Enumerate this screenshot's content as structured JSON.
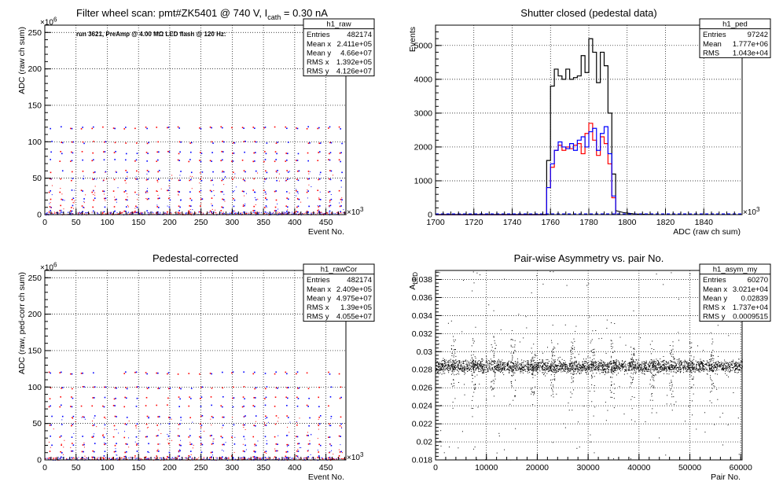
{
  "colors": {
    "black": "#000000",
    "red": "#ff0000",
    "blue": "#0000ff",
    "grid": "#000000",
    "stats_bg": "#ffffff"
  },
  "chart_data": [
    {
      "id": "raw",
      "type": "scatter",
      "title": "Filter wheel scan: pmt#ZK5401 @   740 V, I",
      "title_sub": "cath",
      "title_tail": " = 0.30 nA",
      "annotation": "run 3621, PreAmp @ 4.00 MΩ LED flash @  120 Hz:",
      "xlabel": "Event No.",
      "ylabel": "ADC (raw ch sum)",
      "x_multiplier": "×10",
      "x_multiplier_exp": "3",
      "y_multiplier": "×10",
      "y_multiplier_exp": "6",
      "xlim": [
        0,
        482
      ],
      "ylim": [
        0,
        260
      ],
      "xticks": [
        0,
        50,
        100,
        150,
        200,
        250,
        300,
        350,
        400,
        450
      ],
      "yticks": [
        0,
        50,
        100,
        150,
        200,
        250
      ],
      "grid": true,
      "stats": {
        "title": "h1_raw",
        "rows": [
          [
            "Entries",
            "482174"
          ],
          [
            "Mean x",
            "2.411e+05"
          ],
          [
            "Mean y",
            "4.66e+07"
          ],
          [
            "RMS x",
            "1.392e+05"
          ],
          [
            "RMS y",
            "4.126e+07"
          ]
        ]
      },
      "levels": [
        5,
        12,
        22,
        33,
        49,
        60,
        75,
        86,
        100,
        120
      ],
      "series": [
        {
          "color": "red",
          "offset": 0
        },
        {
          "color": "blue",
          "offset": 2
        }
      ]
    },
    {
      "id": "ped",
      "type": "line",
      "title": "Shutter closed (pedestal data)",
      "xlabel": "ADC (raw ch sum)",
      "ylabel": "Events",
      "x_multiplier": "×10",
      "x_multiplier_exp": "3",
      "xlim": [
        1700,
        1860
      ],
      "ylim": [
        0,
        5600
      ],
      "xticks": [
        1700,
        1720,
        1740,
        1760,
        1780,
        1800,
        1820,
        1840
      ],
      "yticks": [
        0,
        1000,
        2000,
        3000,
        4000,
        5000
      ],
      "grid": true,
      "stats": {
        "title": "h1_ped",
        "rows": [
          [
            "Entries",
            "97242"
          ],
          [
            "Mean",
            "1.777e+06"
          ],
          [
            "RMS",
            "1.043e+04"
          ]
        ]
      },
      "bin_edges": [
        1758,
        1760,
        1762,
        1764,
        1766,
        1768,
        1770,
        1772,
        1774,
        1776,
        1778,
        1780,
        1782,
        1784,
        1786,
        1788,
        1790,
        1792,
        1794
      ],
      "series": [
        {
          "color": "black",
          "values": [
            1600,
            3800,
            4300,
            4100,
            4000,
            4300,
            4000,
            4050,
            4100,
            4700,
            4200,
            5200,
            4800,
            3900,
            4800,
            4400,
            3000,
            1200
          ]
        },
        {
          "color": "red",
          "values": [
            800,
            1400,
            1900,
            2050,
            1900,
            2000,
            1950,
            2050,
            2100,
            1800,
            2400,
            2700,
            2200,
            1750,
            2300,
            2100,
            1500,
            500
          ]
        },
        {
          "color": "blue",
          "values": [
            800,
            1500,
            1900,
            2150,
            2000,
            1950,
            2100,
            1900,
            2200,
            2300,
            2000,
            2450,
            2550,
            1900,
            2400,
            2600,
            1800,
            550
          ]
        }
      ]
    },
    {
      "id": "rawcor",
      "type": "scatter",
      "title": "Pedestal-corrected",
      "xlabel": "Event No.",
      "ylabel": "ADC (raw, ped-corr ch sum)",
      "x_multiplier": "×10",
      "x_multiplier_exp": "3",
      "y_multiplier": "×10",
      "y_multiplier_exp": "6",
      "xlim": [
        0,
        482
      ],
      "ylim": [
        0,
        260
      ],
      "xticks": [
        0,
        50,
        100,
        150,
        200,
        250,
        300,
        350,
        400,
        450
      ],
      "yticks": [
        0,
        50,
        100,
        150,
        200,
        250
      ],
      "grid": true,
      "stats": {
        "title": "h1_rawCor",
        "rows": [
          [
            "Entries",
            "482174"
          ],
          [
            "Mean x",
            "2.409e+05"
          ],
          [
            "Mean y",
            "4.975e+07"
          ],
          [
            "RMS x",
            "1.39e+05"
          ],
          [
            "RMS y",
            "4.055e+07"
          ]
        ]
      },
      "levels": [
        5,
        12,
        22,
        33,
        49,
        60,
        75,
        86,
        100,
        120
      ],
      "series": [
        {
          "color": "red",
          "offset": 0
        },
        {
          "color": "blue",
          "offset": 2
        }
      ]
    },
    {
      "id": "asym",
      "type": "scatter",
      "title": "Pair-wise Asymmetry vs. pair No.",
      "xlabel": "Pair No.",
      "ylabel": "A",
      "ylabel_sub": "LED",
      "xlim": [
        0,
        60270
      ],
      "ylim": [
        0.018,
        0.039
      ],
      "xticks": [
        0,
        10000,
        20000,
        30000,
        40000,
        50000,
        60000
      ],
      "yticks": [
        0.018,
        0.02,
        0.022,
        0.024,
        0.026,
        0.028,
        0.03,
        0.032,
        0.034,
        0.036,
        0.038
      ],
      "grid": true,
      "stats": {
        "title": "h1_asym_my",
        "rows": [
          [
            "Entries",
            "60270"
          ],
          [
            "Mean x",
            "3.021e+04"
          ],
          [
            "Mean y",
            "0.02839"
          ],
          [
            "RMS x",
            "1.737e+04"
          ],
          [
            "RMS y",
            "0.0009515"
          ]
        ]
      },
      "band_center": 0.0284,
      "band_halfwidth": 0.0008,
      "spike_positions": [
        3500,
        7400,
        11300,
        15200,
        19100,
        23000,
        26900,
        30800,
        34700,
        38600,
        42500,
        46400,
        50300,
        54200
      ]
    }
  ]
}
